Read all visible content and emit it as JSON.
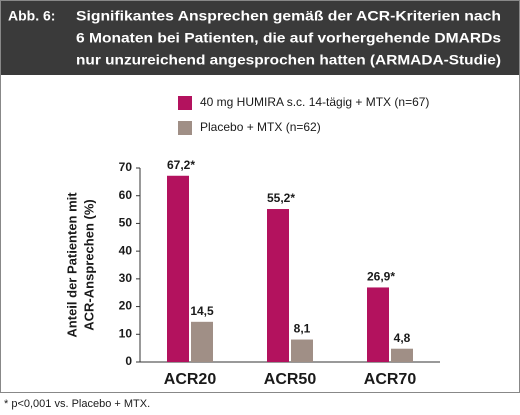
{
  "chart_data": {
    "type": "bar",
    "figure_label": "Abb. 6:",
    "title": [
      "Signifikantes Ansprechen gemäß der ACR-Kriterien nach",
      "6 Monaten bei Patienten, die auf vorhergehende DMARDs",
      "nur unzureichend angesprochen hatten (ARMADA-Studie)"
    ],
    "ylabel": [
      "Anteil der Patienten mit",
      "ACR-Ansprechen (%)"
    ],
    "categories": [
      "ACR20",
      "ACR50",
      "ACR70"
    ],
    "series": [
      {
        "name": "40 mg HUMIRA s.c. 14-tägig + MTX (n=67)",
        "color": "#b3125e",
        "values": [
          67.2,
          55.2,
          26.9
        ],
        "value_labels": [
          "67,2*",
          "55,2*",
          "26,9*"
        ]
      },
      {
        "name": "Placebo + MTX (n=62)",
        "color": "#a08f86",
        "values": [
          14.5,
          8.1,
          4.8
        ],
        "value_labels": [
          "14,5",
          "8,1",
          "4,8"
        ]
      }
    ],
    "ylim": [
      0,
      70
    ],
    "yticks": [
      0,
      10,
      20,
      30,
      40,
      50,
      60,
      70
    ],
    "grid": false,
    "annotation": "* p<0,001 vs. Placebo + MTX."
  }
}
